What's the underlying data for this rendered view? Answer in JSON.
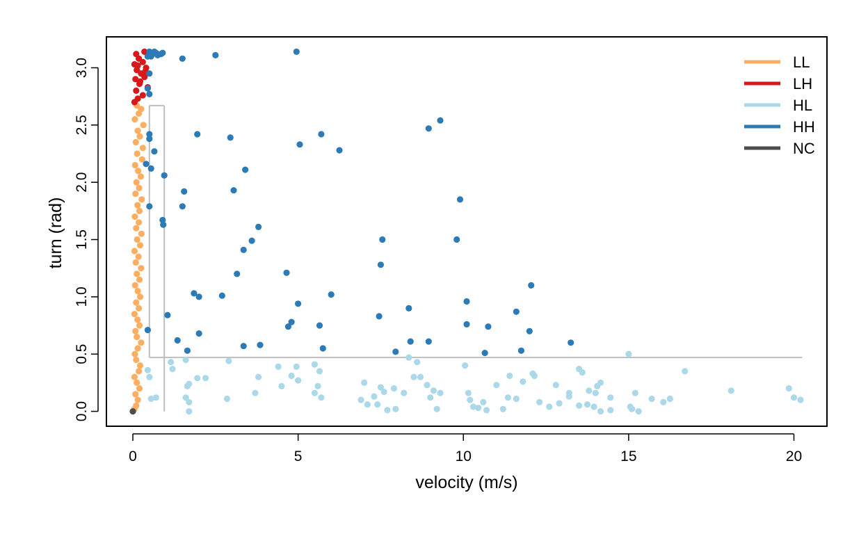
{
  "chart_data": {
    "type": "scatter",
    "xlabel": "velocity (m/s)",
    "ylabel": "turn (rad)",
    "xlim": [
      -0.8,
      21.0
    ],
    "ylim": [
      -0.13,
      3.27
    ],
    "xticks": [
      0,
      5,
      10,
      15,
      20
    ],
    "yticks": [
      0.0,
      0.5,
      1.0,
      1.5,
      2.0,
      2.5,
      3.0
    ],
    "xtick_labels": [
      "0",
      "5",
      "10",
      "15",
      "20"
    ],
    "ytick_labels": [
      "0.0",
      "0.5",
      "1.0",
      "1.5",
      "2.0",
      "2.5",
      "3.0"
    ],
    "legend_position": "top-right",
    "grid": false,
    "threshold_lines": {
      "color": "#bebebe",
      "velocity_low": 0.5,
      "velocity_high": 0.95,
      "turn_low": 0.47,
      "turn_high": 2.67,
      "velocity_max": 20.25
    },
    "series": [
      {
        "name": "LL",
        "color": "#fdae61",
        "points": [
          [
            0.05,
            0.02
          ],
          [
            0.1,
            0.05
          ],
          [
            0.15,
            0.1
          ],
          [
            0.08,
            0.15
          ],
          [
            0.2,
            0.2
          ],
          [
            0.12,
            0.25
          ],
          [
            0.05,
            0.3
          ],
          [
            0.18,
            0.35
          ],
          [
            0.22,
            0.4
          ],
          [
            0.1,
            0.45
          ],
          [
            0.06,
            0.5
          ],
          [
            0.15,
            0.55
          ],
          [
            0.25,
            0.6
          ],
          [
            0.12,
            0.65
          ],
          [
            0.08,
            0.7
          ],
          [
            0.2,
            0.75
          ],
          [
            0.14,
            0.8
          ],
          [
            0.05,
            0.85
          ],
          [
            0.18,
            0.9
          ],
          [
            0.1,
            0.95
          ],
          [
            0.22,
            1.0
          ],
          [
            0.15,
            1.05
          ],
          [
            0.07,
            1.1
          ],
          [
            0.2,
            1.15
          ],
          [
            0.12,
            1.2
          ],
          [
            0.25,
            1.25
          ],
          [
            0.09,
            1.3
          ],
          [
            0.17,
            1.35
          ],
          [
            0.05,
            1.4
          ],
          [
            0.22,
            1.45
          ],
          [
            0.13,
            1.5
          ],
          [
            0.26,
            1.55
          ],
          [
            0.1,
            1.6
          ],
          [
            0.18,
            1.65
          ],
          [
            0.06,
            1.7
          ],
          [
            0.2,
            1.75
          ],
          [
            0.14,
            1.8
          ],
          [
            0.27,
            1.85
          ],
          [
            0.08,
            1.9
          ],
          [
            0.19,
            1.95
          ],
          [
            0.11,
            2.0
          ],
          [
            0.24,
            2.05
          ],
          [
            0.16,
            2.1
          ],
          [
            0.07,
            2.15
          ],
          [
            0.28,
            2.2
          ],
          [
            0.13,
            2.25
          ],
          [
            0.3,
            2.3
          ],
          [
            0.09,
            2.35
          ],
          [
            0.21,
            2.4
          ],
          [
            0.15,
            2.45
          ],
          [
            0.32,
            2.5
          ],
          [
            0.06,
            2.55
          ],
          [
            0.18,
            2.6
          ],
          [
            0.25,
            2.64
          ],
          [
            0.12,
            2.67
          ]
        ]
      },
      {
        "name": "LH",
        "color": "#d7191c",
        "points": [
          [
            0.05,
            2.7
          ],
          [
            0.15,
            2.73
          ],
          [
            0.3,
            2.76
          ],
          [
            0.1,
            2.8
          ],
          [
            0.45,
            2.83
          ],
          [
            0.2,
            2.86
          ],
          [
            0.08,
            2.9
          ],
          [
            0.35,
            2.92
          ],
          [
            0.25,
            2.95
          ],
          [
            0.12,
            2.98
          ],
          [
            0.4,
            3.0
          ],
          [
            0.05,
            3.03
          ],
          [
            0.3,
            3.05
          ],
          [
            0.18,
            3.08
          ],
          [
            0.45,
            3.1
          ],
          [
            0.1,
            3.12
          ],
          [
            0.35,
            3.14
          ],
          [
            0.22,
            2.88
          ],
          [
            0.15,
            3.02
          ],
          [
            0.38,
            2.97
          ]
        ]
      },
      {
        "name": "HL",
        "color": "#abd9e9",
        "points": [
          [
            0.45,
            0.36
          ],
          [
            0.55,
            0.11
          ],
          [
            0.5,
            0.3
          ],
          [
            0.7,
            0.12
          ],
          [
            1.15,
            0.43
          ],
          [
            1.2,
            0.37
          ],
          [
            1.6,
            0.45
          ],
          [
            1.6,
            0.12
          ],
          [
            1.65,
            0.22
          ],
          [
            1.7,
            0.24
          ],
          [
            1.7,
            0.08
          ],
          [
            1.7,
            0.0
          ],
          [
            1.95,
            0.29
          ],
          [
            2.2,
            0.29
          ],
          [
            2.85,
            0.11
          ],
          [
            2.9,
            0.44
          ],
          [
            3.7,
            0.16
          ],
          [
            3.8,
            0.3
          ],
          [
            4.4,
            0.39
          ],
          [
            4.5,
            0.22
          ],
          [
            4.8,
            0.31
          ],
          [
            4.95,
            0.39
          ],
          [
            5.0,
            0.27
          ],
          [
            5.5,
            0.41
          ],
          [
            5.5,
            0.16
          ],
          [
            5.6,
            0.22
          ],
          [
            5.65,
            0.35
          ],
          [
            5.7,
            0.12
          ],
          [
            6.9,
            0.1
          ],
          [
            7.0,
            0.25
          ],
          [
            7.1,
            0.06
          ],
          [
            7.3,
            0.13
          ],
          [
            7.4,
            0.06
          ],
          [
            7.5,
            0.21
          ],
          [
            7.6,
            0.17
          ],
          [
            7.7,
            0.01
          ],
          [
            7.9,
            0.2
          ],
          [
            7.95,
            0.02
          ],
          [
            8.2,
            0.16
          ],
          [
            8.35,
            0.47
          ],
          [
            8.5,
            0.3
          ],
          [
            8.6,
            0.43
          ],
          [
            8.7,
            0.3
          ],
          [
            8.9,
            0.23
          ],
          [
            9.0,
            0.12
          ],
          [
            9.1,
            0.18
          ],
          [
            9.2,
            0.02
          ],
          [
            9.3,
            0.16
          ],
          [
            10.05,
            0.4
          ],
          [
            10.15,
            0.16
          ],
          [
            10.2,
            0.1
          ],
          [
            10.3,
            0.04
          ],
          [
            10.45,
            0.03
          ],
          [
            10.6,
            0.08
          ],
          [
            10.7,
            0.01
          ],
          [
            11.0,
            0.23
          ],
          [
            11.2,
            0.02
          ],
          [
            11.35,
            0.12
          ],
          [
            11.4,
            0.31
          ],
          [
            11.6,
            0.11
          ],
          [
            11.8,
            0.26
          ],
          [
            12.1,
            0.33
          ],
          [
            12.15,
            0.31
          ],
          [
            12.3,
            0.08
          ],
          [
            12.6,
            0.04
          ],
          [
            12.8,
            0.23
          ],
          [
            12.9,
            0.07
          ],
          [
            13.2,
            0.16
          ],
          [
            13.2,
            0.13
          ],
          [
            13.5,
            0.37
          ],
          [
            13.5,
            0.05
          ],
          [
            13.6,
            0.34
          ],
          [
            13.75,
            0.06
          ],
          [
            13.8,
            0.18
          ],
          [
            13.95,
            0.04
          ],
          [
            14.0,
            0.16
          ],
          [
            14.05,
            0.22
          ],
          [
            14.15,
            0.25
          ],
          [
            14.15,
            0.0
          ],
          [
            14.45,
            0.12
          ],
          [
            14.45,
            0.01
          ],
          [
            15.0,
            0.5
          ],
          [
            15.05,
            0.04
          ],
          [
            15.1,
            0.02
          ],
          [
            15.2,
            0.16
          ],
          [
            15.3,
            0.0
          ],
          [
            15.7,
            0.11
          ],
          [
            16.05,
            0.08
          ],
          [
            16.25,
            0.11
          ],
          [
            16.7,
            0.35
          ],
          [
            18.1,
            0.18
          ],
          [
            19.85,
            0.2
          ],
          [
            20.0,
            0.12
          ],
          [
            20.2,
            0.1
          ]
        ]
      },
      {
        "name": "HH",
        "color": "#2c7bb6",
        "points": [
          [
            0.5,
            3.14
          ],
          [
            0.55,
            3.1
          ],
          [
            0.6,
            3.12
          ],
          [
            0.65,
            3.14
          ],
          [
            0.7,
            3.13
          ],
          [
            0.75,
            3.11
          ],
          [
            0.85,
            3.12
          ],
          [
            0.45,
            3.1
          ],
          [
            0.9,
            3.13
          ],
          [
            0.5,
            2.95
          ],
          [
            0.45,
            2.82
          ],
          [
            0.5,
            2.77
          ],
          [
            0.4,
            2.16
          ],
          [
            0.5,
            2.42
          ],
          [
            0.5,
            2.38
          ],
          [
            0.55,
            2.12
          ],
          [
            0.65,
            2.27
          ],
          [
            0.9,
            1.67
          ],
          [
            0.92,
            1.63
          ],
          [
            0.95,
            2.06
          ],
          [
            1.05,
            0.84
          ],
          [
            0.45,
            0.71
          ],
          [
            0.5,
            1.79
          ],
          [
            1.35,
            0.62
          ],
          [
            1.5,
            1.79
          ],
          [
            1.5,
            3.08
          ],
          [
            1.55,
            1.92
          ],
          [
            1.65,
            0.53
          ],
          [
            1.85,
            1.03
          ],
          [
            1.95,
            2.42
          ],
          [
            2.0,
            1.0
          ],
          [
            2.0,
            0.68
          ],
          [
            2.5,
            3.11
          ],
          [
            2.7,
            1.01
          ],
          [
            2.95,
            2.39
          ],
          [
            3.05,
            1.93
          ],
          [
            3.15,
            1.2
          ],
          [
            3.35,
            0.57
          ],
          [
            3.35,
            1.41
          ],
          [
            3.4,
            2.11
          ],
          [
            3.6,
            1.49
          ],
          [
            3.8,
            1.61
          ],
          [
            3.85,
            0.58
          ],
          [
            4.65,
            1.21
          ],
          [
            4.7,
            0.74
          ],
          [
            4.8,
            0.78
          ],
          [
            4.95,
            3.14
          ],
          [
            5.0,
            0.94
          ],
          [
            5.05,
            2.33
          ],
          [
            5.65,
            0.75
          ],
          [
            5.7,
            2.42
          ],
          [
            5.75,
            0.55
          ],
          [
            6.0,
            1.02
          ],
          [
            6.25,
            2.28
          ],
          [
            7.45,
            0.83
          ],
          [
            7.5,
            1.28
          ],
          [
            7.55,
            1.5
          ],
          [
            7.95,
            0.52
          ],
          [
            8.35,
            0.9
          ],
          [
            8.4,
            0.61
          ],
          [
            8.95,
            2.47
          ],
          [
            8.95,
            0.61
          ],
          [
            9.3,
            2.54
          ],
          [
            9.8,
            1.5
          ],
          [
            9.9,
            1.85
          ],
          [
            10.1,
            0.96
          ],
          [
            10.1,
            0.76
          ],
          [
            10.65,
            0.51
          ],
          [
            10.75,
            0.74
          ],
          [
            11.6,
            0.87
          ],
          [
            11.75,
            0.53
          ],
          [
            12.0,
            0.7
          ],
          [
            12.05,
            1.1
          ],
          [
            13.25,
            0.6
          ]
        ]
      },
      {
        "name": "NC",
        "color": "#4d4d4d",
        "points": [
          [
            0.0,
            0.0
          ]
        ]
      }
    ]
  }
}
